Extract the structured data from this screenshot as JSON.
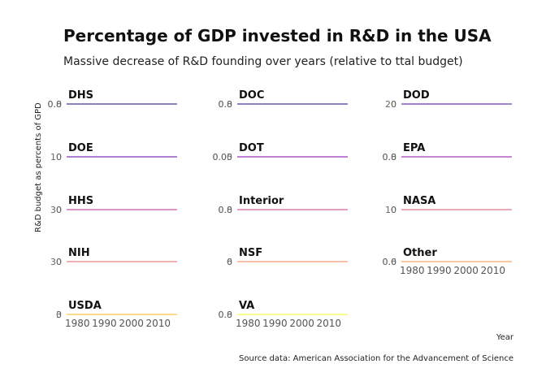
{
  "chart_data": {
    "type": "line",
    "title": "Percentage of GDP invested in R&D in the USA",
    "subtitle": "Massive decrease of R&D founding over years (relative to ttal budget)",
    "xlabel": "Year",
    "ylabel": "R&D budget as percents of GPD",
    "caption": "Source data: American Association for the Advancement of Science",
    "x_ticks": [
      "1980",
      "1990",
      "2000",
      "2010"
    ],
    "xlim": [
      1976,
      2017
    ],
    "facets": [
      {
        "name": "DHS",
        "y_ticks": [
          "0.8",
          "0.0"
        ],
        "color": "#0d0887"
      },
      {
        "name": "DOC",
        "y_ticks": [
          "0.8",
          "0.0"
        ],
        "color": "#1b068d"
      },
      {
        "name": "DOD",
        "y_ticks": [
          "20",
          "0"
        ],
        "color": "#47039f"
      },
      {
        "name": "DOE",
        "y_ticks": [
          "10",
          "0"
        ],
        "color": "#5b01a5"
      },
      {
        "name": "DOT",
        "y_ticks": [
          "0.05",
          "0.00"
        ],
        "color": "#7e03a8"
      },
      {
        "name": "EPA",
        "y_ticks": [
          "0.8",
          "0.0"
        ],
        "color": "#8f0da4"
      },
      {
        "name": "HHS",
        "y_ticks": [
          "30",
          "0"
        ],
        "color": "#b12a90"
      },
      {
        "name": "Interior",
        "y_ticks": [
          "0.8",
          "0.0"
        ],
        "color": "#c33d80"
      },
      {
        "name": "NASA",
        "y_ticks": [
          "10",
          "0"
        ],
        "color": "#d5546e"
      },
      {
        "name": "NIH",
        "y_ticks": [
          "30",
          "0"
        ],
        "color": "#e16462"
      },
      {
        "name": "NSF",
        "y_ticks": [
          "6",
          "0"
        ],
        "color": "#f0804d"
      },
      {
        "name": "Other",
        "y_ticks": [
          "0.6",
          "0.0"
        ],
        "color": "#f89540"
      },
      {
        "name": "USDA",
        "y_ticks": [
          "3",
          "0"
        ],
        "color": "#fbb61a"
      },
      {
        "name": "VA",
        "y_ticks": [
          "0.8",
          "0.0"
        ],
        "color": "#f0f921"
      }
    ],
    "x_axis_panels": [
      "Other",
      "USDA",
      "VA"
    ],
    "grid": false,
    "legend": "none"
  }
}
